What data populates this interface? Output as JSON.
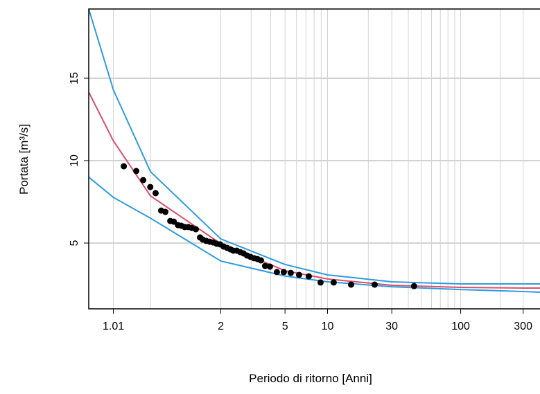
{
  "chart_data": {
    "type": "line",
    "xscale": "gumbel",
    "xlabel": "Periodo di ritorno [Anni]",
    "ylabel": "Portata  [m³/s]",
    "xlim": [
      1.0008,
      404
    ],
    "ylim": [
      1.01,
      19.2
    ],
    "xticks": [
      1.01,
      2,
      5,
      10,
      30,
      100,
      300
    ],
    "yticks": [
      5,
      10,
      15
    ],
    "xgrid": [
      1.01,
      1.1,
      2,
      3,
      4,
      5,
      6,
      7,
      8,
      9,
      10,
      20,
      30,
      40,
      50,
      60,
      70,
      80,
      90,
      100,
      200,
      300
    ],
    "grid": true,
    "series": [
      {
        "style": "line",
        "color": "#2e9be0",
        "x": [
          1.0008,
          1.01,
          1.1,
          2,
          5,
          10,
          30,
          100,
          300,
          404
        ],
        "values": [
          19.2,
          14.29,
          9.33,
          5.25,
          3.7,
          3.07,
          2.65,
          2.52,
          2.52,
          2.52
        ]
      },
      {
        "style": "line",
        "color": "#d9506a",
        "x": [
          1.0008,
          1.01,
          1.1,
          2,
          5,
          10,
          30,
          100,
          300,
          404
        ],
        "values": [
          14.16,
          11.2,
          7.86,
          4.96,
          3.32,
          2.82,
          2.44,
          2.31,
          2.27,
          2.27
        ]
      },
      {
        "style": "line",
        "color": "#2e9be0",
        "x": [
          1.0008,
          1.01,
          1.1,
          2,
          5,
          10,
          30,
          100,
          300,
          404
        ],
        "values": [
          9.0,
          7.77,
          6.51,
          3.91,
          3.0,
          2.65,
          2.35,
          2.18,
          2.06,
          2.02
        ]
      },
      {
        "style": "points",
        "color": "#000000",
        "x": [
          1.022,
          1.048,
          1.07,
          1.099,
          1.126,
          1.159,
          1.188,
          1.226,
          1.256,
          1.296,
          1.331,
          1.37,
          1.412,
          1.458,
          1.517,
          1.582,
          1.628,
          1.69,
          1.756,
          1.827,
          1.902,
          1.982,
          2.07,
          2.162,
          2.261,
          2.345,
          2.455,
          2.573,
          2.698,
          2.832,
          2.974,
          3.125,
          3.289,
          3.46,
          3.68,
          3.96,
          4.405,
          4.906,
          5.473,
          6.258,
          7.33,
          8.9,
          11.09,
          14.88,
          22.3,
          44.2
        ],
        "values": [
          9.66,
          9.37,
          8.82,
          8.4,
          8.03,
          6.97,
          6.89,
          6.34,
          6.3,
          6.09,
          6.05,
          5.97,
          5.97,
          5.92,
          5.84,
          5.34,
          5.21,
          5.13,
          5.08,
          5.04,
          4.96,
          4.92,
          4.79,
          4.71,
          4.62,
          4.54,
          4.54,
          4.45,
          4.37,
          4.24,
          4.16,
          4.08,
          4.03,
          3.95,
          3.61,
          3.57,
          3.24,
          3.24,
          3.19,
          3.07,
          2.98,
          2.61,
          2.61,
          2.48,
          2.48,
          2.39
        ]
      }
    ]
  }
}
